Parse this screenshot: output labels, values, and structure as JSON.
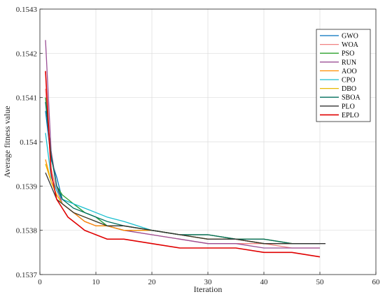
{
  "chart_data": {
    "type": "line",
    "title": "",
    "xlabel": "Iteration",
    "ylabel": "Average fitness value",
    "xlim": [
      0,
      60
    ],
    "ylim": [
      0.1537,
      0.1543
    ],
    "x_ticks": [
      0,
      10,
      20,
      30,
      40,
      50,
      60
    ],
    "y_ticks": [
      0.1537,
      0.1538,
      0.1539,
      0.154,
      0.1541,
      0.1542,
      0.1543
    ],
    "x_tick_labels": [
      "0",
      "10",
      "20",
      "30",
      "40",
      "50",
      "60"
    ],
    "y_tick_labels": [
      "0.1537",
      "0.1538",
      "0.1539",
      "0.154",
      "0.1541",
      "0.1542",
      "0.1543"
    ],
    "grid": true,
    "legend_position": "top-right",
    "series": [
      {
        "name": "GWO",
        "color": "#0072BD",
        "x": [
          1,
          2,
          3,
          4,
          6,
          8,
          10,
          12,
          15,
          20,
          25,
          30,
          35,
          40,
          45,
          50
        ],
        "y": [
          0.15407,
          0.15396,
          0.15392,
          0.15387,
          0.15386,
          0.15384,
          0.15383,
          0.15381,
          0.1538,
          0.1538,
          0.15379,
          0.15379,
          0.15378,
          0.15377,
          0.15377,
          0.15377
        ]
      },
      {
        "name": "WOA",
        "color": "#F08080",
        "x": [
          1,
          2,
          3,
          4,
          6,
          8,
          10,
          12,
          15,
          20,
          25,
          30,
          35,
          40,
          45,
          50
        ],
        "y": [
          0.15412,
          0.15394,
          0.15389,
          0.15386,
          0.15384,
          0.15382,
          0.15381,
          0.15381,
          0.1538,
          0.15379,
          0.15378,
          0.15377,
          0.15377,
          0.15377,
          0.15376,
          0.15376
        ]
      },
      {
        "name": "PSO",
        "color": "#2CA02C",
        "x": [
          1,
          2,
          3,
          4,
          6,
          8,
          10,
          12,
          15,
          20,
          25,
          30,
          35,
          40,
          45,
          50
        ],
        "y": [
          0.1541,
          0.15397,
          0.1539,
          0.15388,
          0.15386,
          0.15384,
          0.15383,
          0.15381,
          0.1538,
          0.1538,
          0.15379,
          0.15378,
          0.15378,
          0.15377,
          0.15377,
          0.15377
        ]
      },
      {
        "name": "RUN",
        "color": "#9B4F96",
        "x": [
          1,
          2,
          3,
          4,
          6,
          8,
          10,
          12,
          15,
          20,
          25,
          30,
          35,
          40,
          45,
          50
        ],
        "y": [
          0.15423,
          0.15398,
          0.1539,
          0.15386,
          0.15384,
          0.15382,
          0.15381,
          0.15381,
          0.1538,
          0.15379,
          0.15378,
          0.15377,
          0.15377,
          0.15376,
          0.15376,
          0.15376
        ]
      },
      {
        "name": "AOO",
        "color": "#FF8C00",
        "x": [
          1,
          2,
          3,
          4,
          6,
          8,
          10,
          12,
          15,
          20,
          25,
          30,
          35,
          40,
          45,
          50
        ],
        "y": [
          0.15396,
          0.15391,
          0.15388,
          0.15386,
          0.15384,
          0.15382,
          0.15381,
          0.15381,
          0.1538,
          0.1538,
          0.15379,
          0.15378,
          0.15378,
          0.15377,
          0.15377,
          0.15377
        ]
      },
      {
        "name": "CPO",
        "color": "#17BECF",
        "x": [
          1,
          2,
          3,
          4,
          6,
          8,
          10,
          12,
          15,
          20,
          25,
          30,
          35,
          40,
          45,
          50
        ],
        "y": [
          0.15402,
          0.15392,
          0.15389,
          0.15387,
          0.15386,
          0.15385,
          0.15384,
          0.15383,
          0.15382,
          0.1538,
          0.15379,
          0.15379,
          0.15378,
          0.15378,
          0.15377,
          0.15377
        ]
      },
      {
        "name": "DBO",
        "color": "#E6B800",
        "x": [
          1,
          2,
          3,
          4,
          6,
          8,
          10,
          12,
          15,
          20,
          25,
          30,
          35,
          40,
          45,
          50
        ],
        "y": [
          0.15395,
          0.15391,
          0.15388,
          0.15386,
          0.15384,
          0.15383,
          0.15382,
          0.15381,
          0.15381,
          0.1538,
          0.15379,
          0.15379,
          0.15378,
          0.15378,
          0.15377,
          0.15377
        ]
      },
      {
        "name": "SBOA",
        "color": "#006D5B",
        "x": [
          1,
          2,
          3,
          4,
          6,
          8,
          10,
          12,
          15,
          20,
          25,
          30,
          35,
          40,
          45,
          50
        ],
        "y": [
          0.15409,
          0.15397,
          0.1539,
          0.15387,
          0.15385,
          0.15384,
          0.15383,
          0.15382,
          0.15381,
          0.1538,
          0.15379,
          0.15379,
          0.15378,
          0.15378,
          0.15377,
          0.15377
        ]
      },
      {
        "name": "PLO",
        "color": "#333333",
        "x": [
          1,
          2,
          3,
          4,
          6,
          8,
          10,
          12,
          15,
          20,
          25,
          30,
          35,
          40,
          45,
          51
        ],
        "y": [
          0.15393,
          0.1539,
          0.15387,
          0.15386,
          0.15384,
          0.15383,
          0.15382,
          0.15381,
          0.15381,
          0.1538,
          0.15379,
          0.15378,
          0.15378,
          0.15377,
          0.15377,
          0.15377
        ]
      },
      {
        "name": "EPLO",
        "color": "#E00000",
        "x": [
          1,
          2,
          3,
          4,
          5,
          6,
          7,
          8,
          10,
          12,
          15,
          20,
          25,
          30,
          35,
          40,
          45,
          50
        ],
        "y": [
          0.15416,
          0.15393,
          0.15387,
          0.15385,
          0.15383,
          0.15382,
          0.15381,
          0.1538,
          0.15379,
          0.15378,
          0.15378,
          0.15377,
          0.15376,
          0.15376,
          0.15376,
          0.15375,
          0.15375,
          0.15374
        ]
      }
    ]
  }
}
